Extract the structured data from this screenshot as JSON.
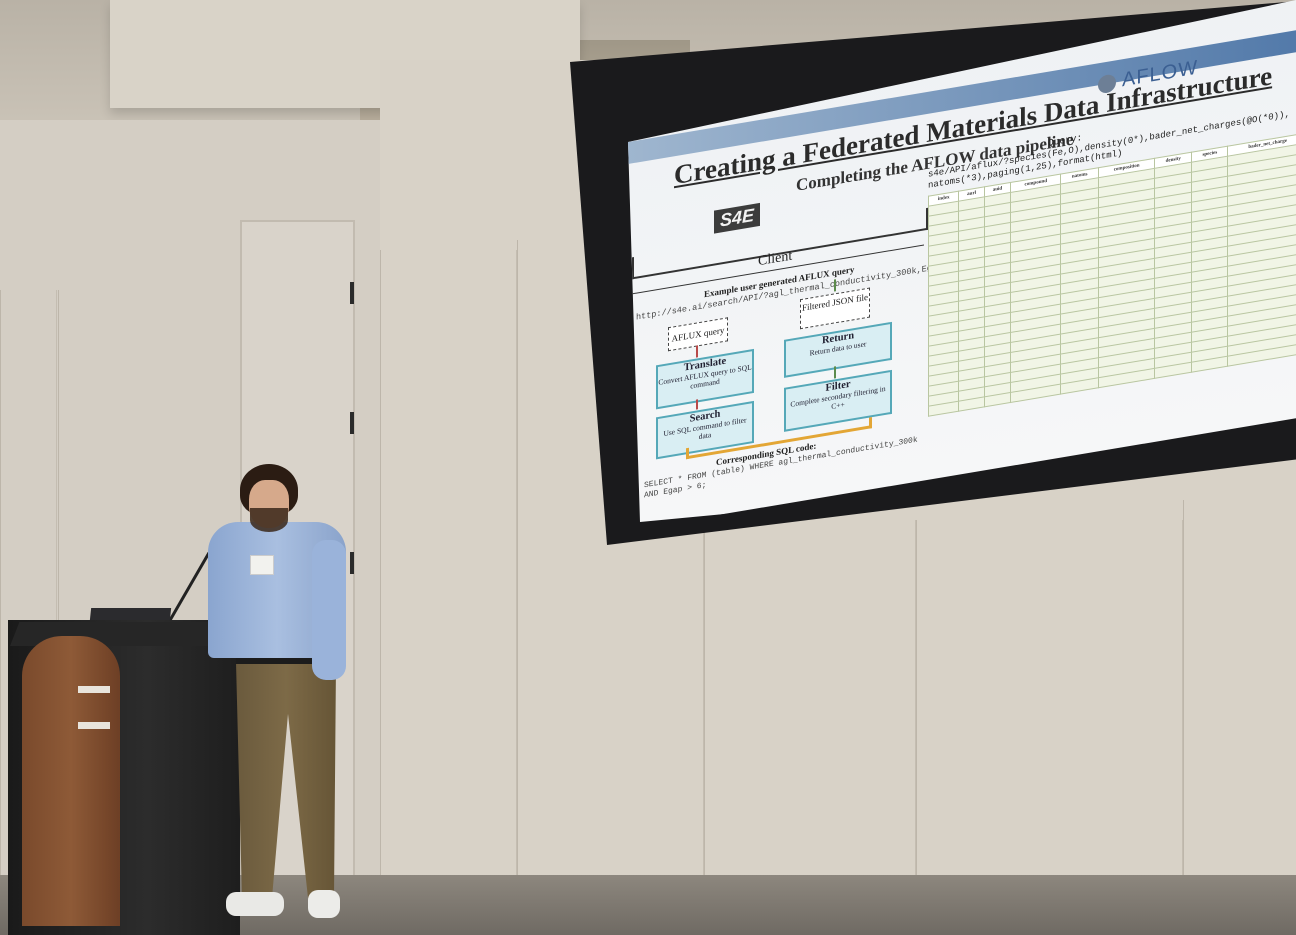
{
  "slide": {
    "title": "Creating a Federated Materials Data Infrastructure",
    "subtitle": "Completing the AFLOW data pipeline",
    "logos": {
      "left": "S4E",
      "right": "AFLOW"
    },
    "client_label": "Client",
    "example_label": "Example user generated AFLUX query",
    "example_url": "http://s4e.ai/search/API/?agl_thermal_conductivity_300k,Egap(6*)",
    "steps": {
      "aflux_query": "AFLUX query",
      "translate_title": "Translate",
      "translate_body": "Convert AFLUX query to SQL command",
      "search_title": "Search",
      "search_body": "Use SQL command to filter data",
      "filtered_json": "Filtered JSON file",
      "return_title": "Return",
      "return_body": "Return data to user",
      "filter_title": "Filter",
      "filter_body": "Complete secondary filtering in C++"
    },
    "sql_label": "Corresponding SQL code:",
    "sql_code": "SELECT * FROM (table) WHERE agl_thermal_conductivity_300k AND Egap > 6;",
    "query_label": "Query:",
    "query_text": "s4e/API/aflux/?species(Fe,O),density(0*),bader_net_charges(@O(*0)), natoms(*3),paging(1,25),format(html)",
    "table_headers": [
      "index",
      "aurl",
      "auid",
      "compound",
      "natoms",
      "composition",
      "density",
      "species",
      "bader_net_charge"
    ]
  },
  "colors": {
    "slide_bar": "#4f77a8",
    "step_box": "#55a8b8",
    "loop_arrow": "#e3a635",
    "down_arrow": "#b84a4a",
    "up_arrow": "#5c8b4c"
  }
}
